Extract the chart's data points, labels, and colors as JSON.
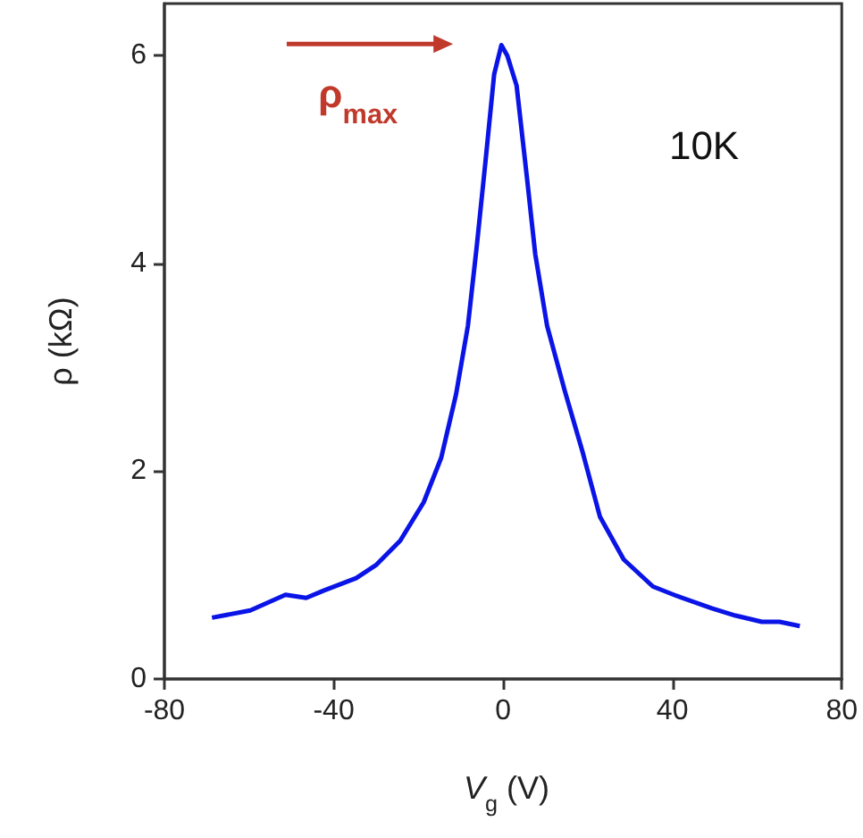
{
  "chart_data": {
    "type": "line",
    "xlabel": "V$_{g}$ (V)",
    "ylabel": "ρ (kΩ)",
    "xlim": [
      -80,
      80
    ],
    "xticks": [
      -80,
      -40,
      0,
      40,
      80
    ],
    "ylim": [
      0,
      6.5
    ],
    "yticks": [
      0,
      2,
      4,
      6
    ],
    "grid": false,
    "marker": "none",
    "line_style": "solid",
    "annotations": [
      "ρ$_{max}$",
      "10K"
    ],
    "series": [
      {
        "color": "#0a14e6",
        "x": [
          -68.75,
          -59.7,
          -51.4,
          -46.5,
          -42.4,
          -34.7,
          -29.9,
          -24.3,
          -18.75,
          -14.6,
          -11.1,
          -8.3,
          -6.25,
          -4.2,
          -2.1,
          -0.4,
          1.0,
          3.2,
          5.6,
          7.6,
          10.4,
          14.6,
          18.75,
          22.9,
          28.5,
          35.4,
          41,
          49.3,
          54.9,
          61.1,
          65.3,
          70.1
        ],
        "values": [
          0.59,
          0.66,
          0.81,
          0.78,
          0.85,
          0.97,
          1.1,
          1.33,
          1.7,
          2.13,
          2.74,
          3.4,
          4.15,
          4.96,
          5.82,
          6.1,
          6.0,
          5.71,
          4.84,
          4.09,
          3.4,
          2.77,
          2.19,
          1.56,
          1.15,
          0.89,
          0.8,
          0.68,
          0.61,
          0.55,
          0.55,
          0.51
        ]
      }
    ]
  }
}
